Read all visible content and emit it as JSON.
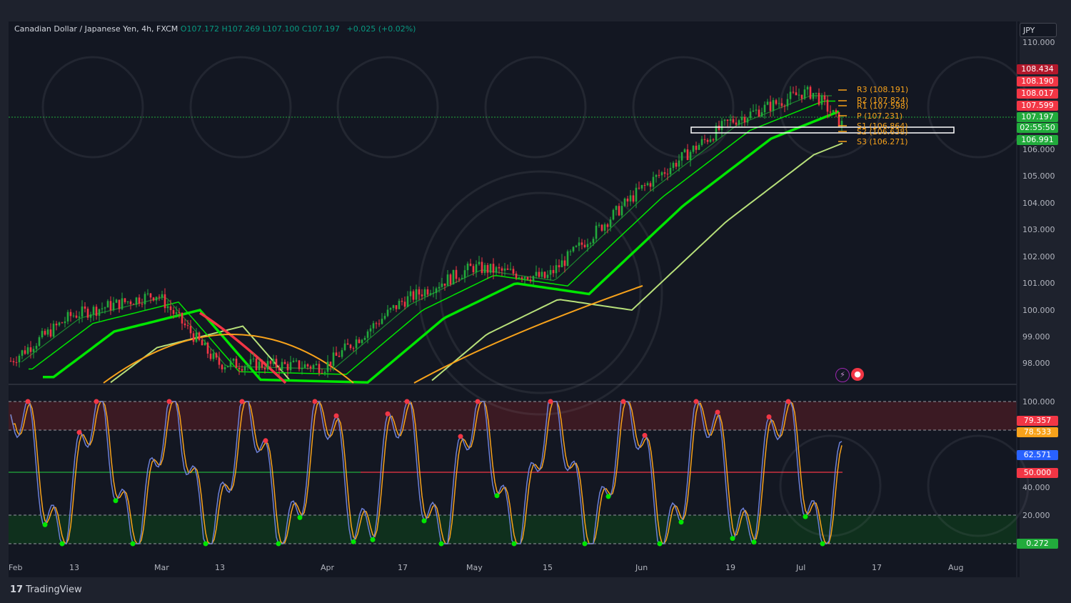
{
  "legend": {
    "symbol": "Canadian Dollar / Japanese Yen, 4h, FXCM",
    "open": "O107.172",
    "high": "H107.269",
    "low": "L107.100",
    "close": "C107.197",
    "change": "+0.025 (+0.02%)"
  },
  "currency": "JPY",
  "price_axis": [
    "110.000",
    "106.000",
    "105.000",
    "104.000",
    "103.000",
    "102.000",
    "101.000",
    "100.000",
    "99.000",
    "98.000"
  ],
  "osc_axis": [
    "100.000",
    "40.000",
    "20.000"
  ],
  "price_badges": [
    {
      "text": "108.434",
      "color": "#b2182b"
    },
    {
      "text": "108.190",
      "color": "#f23645"
    },
    {
      "text": "108.017",
      "color": "#f23645"
    },
    {
      "text": "107.599",
      "color": "#f23645"
    },
    {
      "text": "107.197",
      "color": "#22ab3c"
    },
    {
      "text": "02:55:50",
      "color": "#22ab3c"
    },
    {
      "text": "106.991",
      "color": "#22ab3c"
    }
  ],
  "osc_badges": [
    {
      "text": "79.357",
      "color": "#f23645"
    },
    {
      "text": "78.533",
      "color": "#f7a21b"
    },
    {
      "text": "62.571",
      "color": "#2962ff"
    },
    {
      "text": "50.000",
      "color": "#f23645"
    },
    {
      "text": "0.272",
      "color": "#22ab3c"
    }
  ],
  "pivots": [
    {
      "label": "R3 (108.191)"
    },
    {
      "label": "R2 (107.824)"
    },
    {
      "label": "R1 (107.598)"
    },
    {
      "label": "P (107.231)"
    },
    {
      "label": "S1 (106.864)"
    },
    {
      "label": "S2 (106.638)"
    },
    {
      "label": "S3 (106.271)"
    }
  ],
  "time_axis": [
    "Feb",
    "13",
    "Mar",
    "13",
    "Apr",
    "17",
    "May",
    "15",
    "Jun",
    "19",
    "Jul",
    "17",
    "Aug"
  ],
  "branding": "TradingView",
  "colors": {
    "bull": "#22ab3c",
    "bear": "#f23645",
    "ema_fast": "#00e600",
    "ema_slow": "#b7e07a",
    "pivot": "#f7a21b",
    "osc_k": "#6b7fd7",
    "osc_d": "#f7a21b"
  },
  "chart_data": {
    "type": "line",
    "x": [
      "Feb",
      "13",
      "Mar",
      "13",
      "Apr",
      "17",
      "May",
      "15",
      "Jun",
      "19",
      "Jul"
    ],
    "series": [
      {
        "values": [
          98.1,
          99.8,
          100.6,
          98.0,
          97.9,
          100.3,
          101.6,
          101.2,
          104.5,
          107.0,
          108.1
        ]
      }
    ],
    "ylim": [
      97.5,
      110.0
    ]
  }
}
